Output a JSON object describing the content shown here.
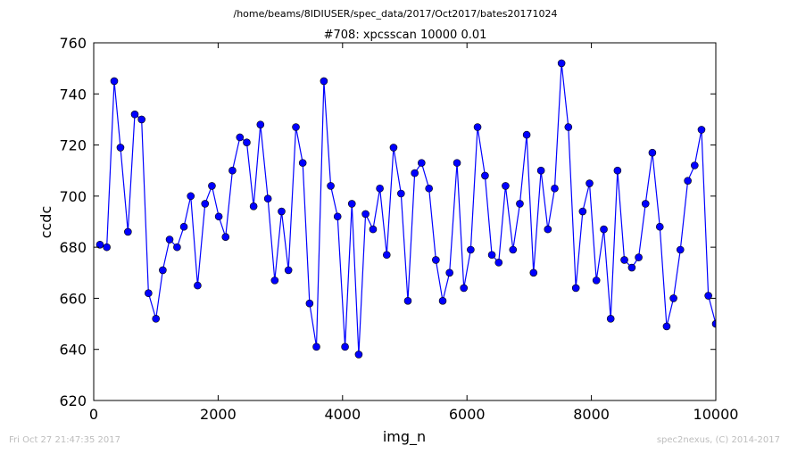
{
  "chart_data": {
    "type": "line",
    "suptitle": "/home/beams/8IDIUSER/spec_data/2017/Oct2017/bates20171024",
    "title": "#708: xpcsscan 10000 0.01",
    "xlabel": "img_n",
    "ylabel": "ccdc",
    "xlim": [
      0,
      10000
    ],
    "ylim": [
      620,
      760
    ],
    "xticks": [
      0,
      2000,
      4000,
      6000,
      8000,
      10000
    ],
    "yticks": [
      620,
      640,
      660,
      680,
      700,
      720,
      740,
      760
    ],
    "grid": false,
    "line_color": "#0000ff",
    "marker_color": "#0000ff",
    "series": [
      {
        "x": [
          100,
          210,
          330,
          430,
          550,
          660,
          770,
          880,
          1000,
          1110,
          1220,
          1340,
          1450,
          1560,
          1670,
          1790,
          1900,
          2010,
          2120,
          2230,
          2350,
          2460,
          2570,
          2680,
          2800,
          2910,
          3020,
          3130,
          3250,
          3360,
          3470,
          3580,
          3700,
          3810,
          3920,
          4040,
          4150,
          4260,
          4370,
          4490,
          4600,
          4710,
          4820,
          4940,
          5050,
          5160,
          5270,
          5390,
          5500,
          5610,
          5720,
          5840,
          5950,
          6060,
          6170,
          6290,
          6400,
          6510,
          6620,
          6740,
          6850,
          6960,
          7070,
          7190,
          7300,
          7410,
          7520,
          7630,
          7750,
          7860,
          7970,
          8080,
          8200,
          8310,
          8420,
          8530,
          8650,
          8760,
          8870,
          8980,
          9100,
          9210,
          9320,
          9430,
          9550,
          9660,
          9770,
          9880,
          10000
        ],
        "y": [
          681,
          680,
          745,
          719,
          686,
          732,
          730,
          662,
          652,
          671,
          683,
          680,
          688,
          700,
          665,
          697,
          704,
          692,
          684,
          710,
          723,
          721,
          696,
          728,
          699,
          667,
          694,
          671,
          727,
          713,
          658,
          641,
          745,
          704,
          692,
          641,
          697,
          638,
          693,
          687,
          703,
          677,
          719,
          701,
          659,
          709,
          713,
          703,
          675,
          659,
          670,
          713,
          664,
          679,
          727,
          708,
          677,
          674,
          704,
          679,
          697,
          724,
          670,
          710,
          687,
          703,
          752,
          727,
          664,
          694,
          705,
          667,
          687,
          652,
          710,
          675,
          672,
          676,
          697,
          717,
          688,
          649,
          660,
          679,
          706,
          712,
          726,
          661,
          650
        ]
      }
    ]
  },
  "footer": {
    "timestamp": "Fri Oct 27 21:47:35 2017",
    "credit": "spec2nexus, (C) 2014-2017"
  }
}
